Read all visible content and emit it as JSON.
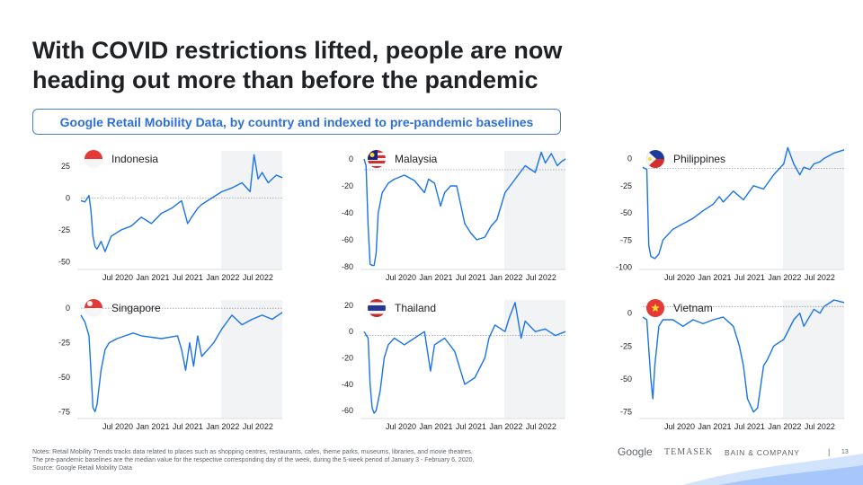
{
  "slide": {
    "title_line1": "With COVID restrictions lifted, people are now",
    "title_line2": "heading out more than before the pandemic",
    "subtitle": "Google Retail Mobility Data, by country and indexed to pre-pandemic baselines"
  },
  "notes": {
    "line1": "Notes: Retail Mobility Trends tracks data related to places such as shopping centres, restaurants, cafes, theme parks, museums, libraries, and movie theatres.",
    "line2": "The pre-pandemic baselines are the median value for the respective corresponding day of the week, during the 5-week period of January 3 - February 6, 2020.",
    "line3": "Source: Google Retail Mobility Data"
  },
  "footer": {
    "google": "Google",
    "temasek": "TEMASEK",
    "bain": "BAIN & COMPANY",
    "separator": "|",
    "page": "13"
  },
  "colors": {
    "line": "#1a73e8",
    "shade": "#f1f3f4",
    "baseline": "#9aa0a6",
    "title": "#202124",
    "subtitle": "#2f6fd6"
  },
  "chart_data": [
    {
      "type": "line",
      "title": "Indonesia",
      "flag": "indonesia",
      "yticks": [
        25,
        0,
        -25,
        -50
      ],
      "ylim": [
        -56,
        37
      ],
      "xticks": [
        "Jul 2020",
        "Jan 2021",
        "Jul 2021",
        "Jan 2022",
        "Jul 2022"
      ],
      "x_range": [
        "2020-02",
        "2022-09"
      ],
      "shaded_from": "2022-01",
      "baseline": 0,
      "x": [
        0,
        0.02,
        0.04,
        0.05,
        0.06,
        0.07,
        0.08,
        0.1,
        0.12,
        0.15,
        0.2,
        0.25,
        0.3,
        0.35,
        0.4,
        0.45,
        0.5,
        0.53,
        0.55,
        0.58,
        0.6,
        0.65,
        0.7,
        0.75,
        0.8,
        0.84,
        0.86,
        0.88,
        0.9,
        0.93,
        0.95,
        0.97,
        1.0
      ],
      "values": [
        -2,
        -3,
        2,
        -10,
        -30,
        -38,
        -40,
        -34,
        -42,
        -30,
        -25,
        -22,
        -15,
        -20,
        -12,
        -8,
        -2,
        -20,
        -15,
        -8,
        -5,
        0,
        5,
        8,
        12,
        5,
        34,
        15,
        20,
        12,
        15,
        18,
        16
      ]
    },
    {
      "type": "line",
      "title": "Malaysia",
      "flag": "malaysia",
      "yticks": [
        0,
        -20,
        -40,
        -60,
        -80
      ],
      "ylim": [
        -82,
        6
      ],
      "xticks": [
        "Jul 2020",
        "Jan 2021",
        "Jul 2021",
        "Jan 2022",
        "Jul 2022"
      ],
      "x_range": [
        "2020-02",
        "2022-09"
      ],
      "shaded_from": "2022-01",
      "baseline": -8,
      "x": [
        0,
        0.01,
        0.02,
        0.03,
        0.04,
        0.05,
        0.06,
        0.07,
        0.09,
        0.12,
        0.15,
        0.2,
        0.25,
        0.3,
        0.32,
        0.35,
        0.38,
        0.4,
        0.43,
        0.46,
        0.5,
        0.53,
        0.56,
        0.6,
        0.63,
        0.66,
        0.7,
        0.75,
        0.8,
        0.85,
        0.88,
        0.9,
        0.93,
        0.96,
        0.98,
        1.0
      ],
      "values": [
        0,
        -5,
        -50,
        -78,
        -79,
        -79,
        -70,
        -40,
        -25,
        -18,
        -15,
        -12,
        -16,
        -25,
        -15,
        -18,
        -35,
        -25,
        -20,
        -20,
        -48,
        -55,
        -60,
        -58,
        -50,
        -45,
        -25,
        -15,
        -5,
        -10,
        5,
        -3,
        4,
        -5,
        -2,
        0
      ]
    },
    {
      "type": "line",
      "title": "Philippines",
      "flag": "philippines",
      "yticks": [
        0,
        -25,
        -50,
        -75,
        -100
      ],
      "ylim": [
        -102,
        7
      ],
      "xticks": [
        "Jul 2020",
        "Jan 2021",
        "Jul 2021",
        "Jan 2022",
        "Jul 2022"
      ],
      "x_range": [
        "2020-02",
        "2022-09"
      ],
      "shaded_from": "2022-01",
      "baseline": -9,
      "x": [
        0,
        0.02,
        0.03,
        0.04,
        0.06,
        0.08,
        0.1,
        0.15,
        0.2,
        0.25,
        0.3,
        0.35,
        0.38,
        0.4,
        0.45,
        0.5,
        0.55,
        0.6,
        0.65,
        0.7,
        0.72,
        0.75,
        0.78,
        0.8,
        0.83,
        0.85,
        0.88,
        0.9,
        0.95,
        1.0
      ],
      "values": [
        -8,
        -10,
        -80,
        -90,
        -92,
        -88,
        -75,
        -65,
        -60,
        -55,
        -48,
        -42,
        -35,
        -40,
        -30,
        -38,
        -25,
        -28,
        -15,
        -5,
        10,
        -5,
        -15,
        -8,
        -10,
        -5,
        -3,
        0,
        5,
        8
      ]
    },
    {
      "type": "line",
      "title": "Singapore",
      "flag": "singapore",
      "yticks": [
        0,
        -25,
        -50,
        -75
      ],
      "ylim": [
        -80,
        6
      ],
      "xticks": [
        "Jul 2020",
        "Jan 2021",
        "Jul 2021",
        "Jan 2022",
        "Jul 2022"
      ],
      "x_range": [
        "2020-02",
        "2022-09"
      ],
      "shaded_from": "2022-01",
      "baseline": 0,
      "x": [
        0,
        0.02,
        0.04,
        0.06,
        0.07,
        0.08,
        0.1,
        0.12,
        0.14,
        0.18,
        0.22,
        0.26,
        0.3,
        0.4,
        0.48,
        0.5,
        0.52,
        0.54,
        0.56,
        0.58,
        0.6,
        0.63,
        0.66,
        0.7,
        0.75,
        0.8,
        0.85,
        0.9,
        0.95,
        1.0
      ],
      "values": [
        -5,
        -10,
        -20,
        -72,
        -75,
        -70,
        -45,
        -30,
        -25,
        -22,
        -20,
        -18,
        -20,
        -22,
        -20,
        -30,
        -45,
        -25,
        -42,
        -20,
        -35,
        -30,
        -25,
        -15,
        -5,
        -12,
        -8,
        -5,
        -8,
        -3
      ]
    },
    {
      "type": "line",
      "title": "Thailand",
      "flag": "thailand",
      "yticks": [
        20,
        0,
        -20,
        -40,
        -60
      ],
      "ylim": [
        -66,
        24
      ],
      "xticks": [
        "Jul 2020",
        "Jan 2021",
        "Jul 2021",
        "Jan 2022",
        "Jul 2022"
      ],
      "x_range": [
        "2020-02",
        "2022-09"
      ],
      "shaded_from": "2022-01",
      "baseline": -3,
      "x": [
        0,
        0.02,
        0.03,
        0.04,
        0.05,
        0.06,
        0.08,
        0.1,
        0.12,
        0.15,
        0.2,
        0.25,
        0.3,
        0.33,
        0.35,
        0.4,
        0.45,
        0.5,
        0.55,
        0.6,
        0.62,
        0.65,
        0.7,
        0.72,
        0.75,
        0.78,
        0.8,
        0.85,
        0.9,
        0.95,
        1.0
      ],
      "values": [
        0,
        -5,
        -40,
        -58,
        -62,
        -60,
        -45,
        -20,
        -10,
        -5,
        -10,
        -5,
        0,
        -30,
        -10,
        -5,
        -15,
        -40,
        -35,
        -20,
        -5,
        5,
        0,
        10,
        22,
        -5,
        8,
        0,
        2,
        -3,
        0
      ]
    },
    {
      "type": "line",
      "title": "Vietnam",
      "flag": "vietnam",
      "yticks": [
        0,
        -25,
        -50,
        -75
      ],
      "ylim": [
        -80,
        10
      ],
      "xticks": [
        "Jul 2020",
        "Jan 2021",
        "Jul 2021",
        "Jan 2022",
        "Jul 2022"
      ],
      "x_range": [
        "2020-02",
        "2022-09"
      ],
      "shaded_from": "2022-01",
      "baseline": 5,
      "x": [
        0,
        0.02,
        0.04,
        0.05,
        0.06,
        0.08,
        0.1,
        0.15,
        0.2,
        0.25,
        0.3,
        0.35,
        0.4,
        0.45,
        0.48,
        0.5,
        0.52,
        0.55,
        0.57,
        0.6,
        0.62,
        0.65,
        0.7,
        0.75,
        0.78,
        0.8,
        0.85,
        0.88,
        0.9,
        0.95,
        1.0
      ],
      "values": [
        -3,
        -5,
        -50,
        -65,
        -40,
        -10,
        -5,
        -5,
        -10,
        -5,
        -8,
        -5,
        -3,
        -10,
        -25,
        -40,
        -65,
        -75,
        -72,
        -40,
        -35,
        -25,
        -20,
        -5,
        0,
        -10,
        3,
        0,
        5,
        10,
        8
      ]
    }
  ]
}
